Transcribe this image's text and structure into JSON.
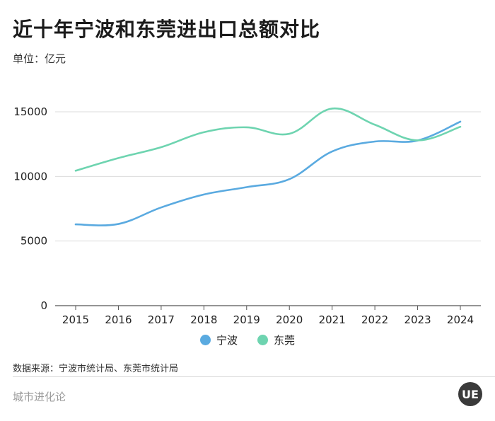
{
  "header": {
    "title": "近十年宁波和东莞进出口总额对比",
    "unit": "单位：亿元"
  },
  "legend": {
    "items": [
      {
        "label": "宁波",
        "color": "#5aaae0"
      },
      {
        "label": "东莞",
        "color": "#6ed4b0"
      }
    ]
  },
  "footer": {
    "source": "数据来源：宁波市统计局、东莞市统计局",
    "brand": "城市进化论",
    "logo_text": "UE"
  },
  "chart_data": {
    "type": "line",
    "title": "近十年宁波和东莞进出口总额对比",
    "ylabel": "单位：亿元",
    "xlabel": "",
    "categories": [
      "2015",
      "2016",
      "2017",
      "2018",
      "2019",
      "2020",
      "2021",
      "2022",
      "2023",
      "2024"
    ],
    "ylim": [
      0,
      15000
    ],
    "yticks": [
      0,
      5000,
      10000,
      15000
    ],
    "grid": true,
    "legend_position": "bottom",
    "series": [
      {
        "name": "宁波",
        "color": "#5aaae0",
        "values": [
          6290,
          6320,
          7600,
          8600,
          9170,
          9790,
          11930,
          12700,
          12780,
          14240
        ]
      },
      {
        "name": "东莞",
        "color": "#6ed4b0",
        "values": [
          10440,
          11420,
          12260,
          13420,
          13800,
          13300,
          15250,
          14000,
          12790,
          13840
        ]
      }
    ]
  }
}
